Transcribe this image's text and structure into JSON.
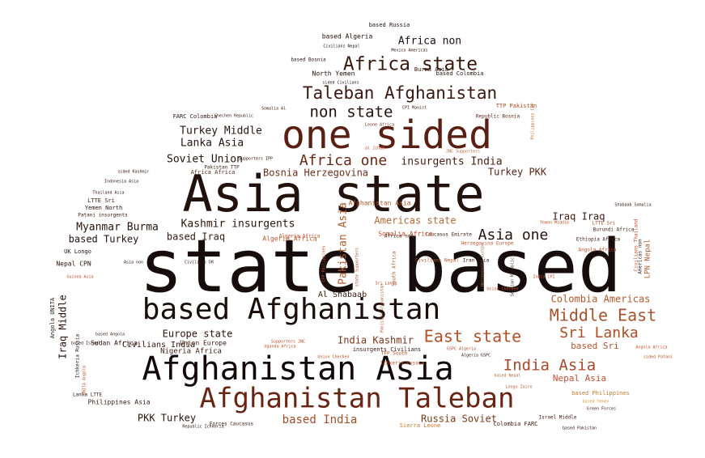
{
  "words": [
    {
      "text": "state based",
      "color": "#160c0b"
    },
    {
      "text": "Asia state",
      "color": "#22110d"
    },
    {
      "text": "one sided",
      "color": "#5a1f12"
    },
    {
      "text": "based Afghanistan",
      "color": "#1a0d0a"
    },
    {
      "text": "Afghanistan Asia",
      "color": "#120908"
    },
    {
      "text": "Afghanistan Taleban",
      "color": "#6a2412"
    },
    {
      "text": "Taleban Afghanistan",
      "color": "#3a1710"
    },
    {
      "text": "Africa state",
      "color": "#3b170e"
    },
    {
      "text": "non state",
      "color": "#24100b"
    },
    {
      "text": "Africa one",
      "color": "#6b2614"
    },
    {
      "text": "Middle East",
      "color": "#a9512b"
    },
    {
      "text": "East state",
      "color": "#b44f24"
    },
    {
      "text": "Sri Lanka",
      "color": "#b24b22"
    },
    {
      "text": "India Asia",
      "color": "#a9482a"
    },
    {
      "text": "Asia one",
      "color": "#26120c"
    },
    {
      "text": "Africa non",
      "color": "#1e100d"
    },
    {
      "text": "Turkey Middle",
      "color": "#2c1610"
    },
    {
      "text": "Lanka Asia",
      "color": "#27130e"
    },
    {
      "text": "Soviet Union",
      "color": "#231108"
    },
    {
      "text": "Bosnia Herzegovina",
      "color": "#6e2e1a"
    },
    {
      "text": "insurgents India",
      "color": "#4a1f13"
    },
    {
      "text": "Turkey PKK",
      "color": "#5b2416"
    },
    {
      "text": "Myanmar Burma",
      "color": "#2a130c"
    },
    {
      "text": "Kashmir insurgents",
      "color": "#2d1409"
    },
    {
      "text": "Americas state",
      "color": "#b66936"
    },
    {
      "text": "based Turkey",
      "color": "#23110b"
    },
    {
      "text": "based Iraq",
      "color": "#3a1a10"
    },
    {
      "text": "Iraq Iraq",
      "color": "#3d1a10"
    },
    {
      "text": "Colombia Americas",
      "color": "#b45a2a"
    },
    {
      "text": "based Sri",
      "color": "#b4512a"
    },
    {
      "text": "Europe state",
      "color": "#2a140c"
    },
    {
      "text": "India Kashmir",
      "color": "#7a3418"
    },
    {
      "text": "Nepal Asia",
      "color": "#c24f2d"
    },
    {
      "text": "based India",
      "color": "#a34c24"
    },
    {
      "text": "Russia Soviet",
      "color": "#7a3a1a"
    },
    {
      "text": "PKK Turkey",
      "color": "#2a1409"
    },
    {
      "text": "Iraq Middle",
      "color": "#2a130c"
    },
    {
      "text": "Pakistan Asia",
      "color": "#b45c2c"
    },
    {
      "text": "Civilians India",
      "color": "#3a1a10"
    },
    {
      "text": "Algeria Africa",
      "color": "#c5552d"
    },
    {
      "text": "Nigeria Africa",
      "color": "#3a190e"
    },
    {
      "text": "Sudan Africa",
      "color": "#2e1509"
    },
    {
      "text": "Union Europe",
      "color": "#3c1a0e"
    },
    {
      "text": "Philippines Asia",
      "color": "#3a1c10"
    },
    {
      "text": "Lanka LTTE",
      "color": "#2d150d"
    },
    {
      "text": "Nepal CPN",
      "color": "#2b140b"
    },
    {
      "text": "UK Longo",
      "color": "#24120a"
    },
    {
      "text": "Asia non",
      "color": "#2c140c"
    },
    {
      "text": "Civilians DR",
      "color": "#35180d"
    },
    {
      "text": "LTTE Sri",
      "color": "#3a1a0e"
    },
    {
      "text": "Yemen North",
      "color": "#2a1309"
    },
    {
      "text": "Patani insurgents",
      "color": "#301509"
    },
    {
      "text": "Thailand Asia",
      "color": "#2e140c"
    },
    {
      "text": "Indonesia Asia",
      "color": "#2e150b"
    },
    {
      "text": "sided Kashmir",
      "color": "#2e1509"
    },
    {
      "text": "Africa Africa",
      "color": "#5a2a14"
    },
    {
      "text": "Pakistan TTP",
      "color": "#3a1a10"
    },
    {
      "text": "FARC Colombia",
      "color": "#2b1409"
    },
    {
      "text": "Chechen Republic",
      "color": "#3a1a10"
    },
    {
      "text": "Somalia Al",
      "color": "#341609"
    },
    {
      "text": "TTP Pakistan",
      "color": "#b04a2a"
    },
    {
      "text": "CPI Maoist",
      "color": "#3a1a0e"
    },
    {
      "text": "Republic Bosnia",
      "color": "#5a2614"
    },
    {
      "text": "Leone Africa",
      "color": "#7a361a"
    },
    {
      "text": "Philippines CPP",
      "color": "#b46a30"
    },
    {
      "text": "al Jihad",
      "color": "#c44e2a"
    },
    {
      "text": "JNC Supporters",
      "color": "#b46c38"
    },
    {
      "text": "Supporters IPP",
      "color": "#2c140a"
    },
    {
      "text": "based Russia",
      "color": "#24120a"
    },
    {
      "text": "based Algeria",
      "color": "#24120a"
    },
    {
      "text": "Civilians Nepal",
      "color": "#24120a"
    },
    {
      "text": "Mexico Americas",
      "color": "#2a140a"
    },
    {
      "text": "based Bosnia",
      "color": "#24120a"
    },
    {
      "text": "Burma Asia",
      "color": "#2c140c"
    },
    {
      "text": "based Colombia",
      "color": "#2c140c"
    },
    {
      "text": "North Yemen",
      "color": "#24120a"
    },
    {
      "text": "sided Civilians",
      "color": "#24120a"
    },
    {
      "text": "Shabaab Somalia",
      "color": "#2e1509"
    },
    {
      "text": "Yemen Middle",
      "color": "#c44e2a"
    },
    {
      "text": "Burundi Africa",
      "color": "#3a1a10"
    },
    {
      "text": "Ethiopia Africa",
      "color": "#3a1a0e"
    },
    {
      "text": "Caucasus Emirate",
      "color": "#3a1a10"
    },
    {
      "text": "Herzegovina Europe",
      "color": "#c4582a"
    },
    {
      "text": "Angola Africa",
      "color": "#c44e2a"
    },
    {
      "text": "Africa non",
      "color": "#3a1a10"
    },
    {
      "text": "LTTE Sri",
      "color": "#b44a2a"
    },
    {
      "text": "Civilians Thailand",
      "color": "#c24f2d"
    },
    {
      "text": "Americas non",
      "color": "#3a1a10"
    },
    {
      "text": "LPN Nepal",
      "color": "#b05a2a"
    },
    {
      "text": "India CPI",
      "color": "#c44e2a"
    },
    {
      "text": "Serbian Republic",
      "color": "#3a1a10"
    },
    {
      "text": "Union Chechen",
      "color": "#c44e2a"
    },
    {
      "text": "Sri Lanka",
      "color": "#b44a2a"
    },
    {
      "text": "Al Shabaab",
      "color": "#3a1a10"
    },
    {
      "text": "South Africa",
      "color": "#b45a2a"
    },
    {
      "text": "Somalia Africa",
      "color": "#c44e2a"
    },
    {
      "text": "Civilians Nepal",
      "color": "#b4582a"
    },
    {
      "text": "Algeria Africa",
      "color": "#c44e2a"
    },
    {
      "text": "Afghanistan Asia",
      "color": "#b45a2a"
    },
    {
      "text": "CPP Philippines",
      "color": "#c24f2d"
    },
    {
      "text": "Herzegovina Europe",
      "color": "#b06a38"
    },
    {
      "text": "insurgents Civilians",
      "color": "#3a1a10"
    },
    {
      "text": "state Supporters",
      "color": "#b04a2a"
    },
    {
      "text": "Pakistan Afghanistan",
      "color": "#b05a2a"
    },
    {
      "text": "Uganda Africa",
      "color": "#c44e2a"
    },
    {
      "text": "Supporters JNC",
      "color": "#c24f2d"
    },
    {
      "text": "GSPC Algeria",
      "color": "#c44e2a"
    },
    {
      "text": "Algeria GSPC",
      "color": "#2c140c"
    },
    {
      "text": "TFP South",
      "color": "#c44e2a"
    },
    {
      "text": "Ichkeria Russia",
      "color": "#c44e2a"
    },
    {
      "text": "Union Chechen",
      "color": "#c44e2a"
    },
    {
      "text": "based Nepal",
      "color": "#b06a38"
    },
    {
      "text": "based Philippines",
      "color": "#c4782a"
    },
    {
      "text": "based Yemen",
      "color": "#d89a40"
    },
    {
      "text": "Green Forces",
      "color": "#3a1a10"
    },
    {
      "text": "Longo Zaire",
      "color": "#b45a2a"
    },
    {
      "text": "Israel Middle",
      "color": "#3a1a10"
    },
    {
      "text": "Colombia FARC",
      "color": "#3a1a10"
    },
    {
      "text": "Sierra Leone",
      "color": "#c4782a"
    },
    {
      "text": "Forces Caucasus",
      "color": "#3a1a10"
    },
    {
      "text": "Republic Ichkeria",
      "color": "#2c140c"
    },
    {
      "text": "based Angola",
      "color": "#3a1a10"
    },
    {
      "text": "based Israel",
      "color": "#2c140c"
    },
    {
      "text": "Ichkeria Russia",
      "color": "#2c140c"
    },
    {
      "text": "UNITA Angola",
      "color": "#c44e2a"
    },
    {
      "text": "Angola Africa",
      "color": "#c44e2a"
    },
    {
      "text": "sided Patani",
      "color": "#c44e2a"
    },
    {
      "text": "based Pakistan",
      "color": "#2c140c"
    },
    {
      "text": "Angola UNITA",
      "color": "#2c140c"
    },
    {
      "text": "Guinea Asia",
      "color": "#c44e2a"
    },
    {
      "text": "Iran Asia",
      "color": "#2c140c"
    }
  ]
}
